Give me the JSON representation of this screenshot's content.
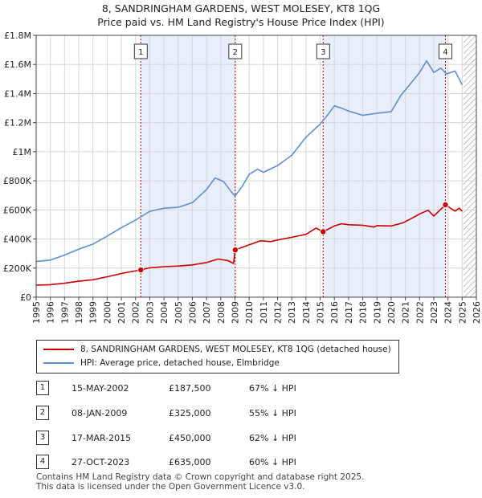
{
  "chart_data": {
    "type": "line",
    "title_line1": "8, SANDRINGHAM GARDENS, WEST MOLESEY, KT8 1QG",
    "title_line2": "Price paid vs. HM Land Registry's House Price Index (HPI)",
    "xlim": [
      1995,
      2026
    ],
    "ylim": [
      0,
      1800000
    ],
    "y_ticks": [
      {
        "value": 0,
        "label": "£0"
      },
      {
        "value": 200000,
        "label": "£200K"
      },
      {
        "value": 400000,
        "label": "£400K"
      },
      {
        "value": 600000,
        "label": "£600K"
      },
      {
        "value": 800000,
        "label": "£800K"
      },
      {
        "value": 1000000,
        "label": "£1M"
      },
      {
        "value": 1200000,
        "label": "£1.2M"
      },
      {
        "value": 1400000,
        "label": "£1.4M"
      },
      {
        "value": 1600000,
        "label": "£1.6M"
      },
      {
        "value": 1800000,
        "label": "£1.8M"
      }
    ],
    "x_ticks": [
      "1995",
      "1996",
      "1997",
      "1998",
      "1999",
      "2000",
      "2001",
      "2002",
      "2003",
      "2004",
      "2005",
      "2006",
      "2007",
      "2008",
      "2009",
      "2010",
      "2011",
      "2012",
      "2013",
      "2014",
      "2015",
      "2016",
      "2017",
      "2018",
      "2019",
      "2020",
      "2021",
      "2022",
      "2023",
      "2024",
      "2025",
      "2026"
    ],
    "shaded_periods": [
      [
        2002.37,
        2009.02
      ],
      [
        2015.21,
        2023.82
      ]
    ],
    "hatched_from": 2025.08,
    "series": [
      {
        "name": "8, SANDRINGHAM GARDENS, WEST MOLESEY, KT8 1QG (detached house)",
        "color": "#cc0000",
        "points": [
          [
            1995,
            82000
          ],
          [
            1996,
            86000
          ],
          [
            1997,
            96000
          ],
          [
            1998,
            110000
          ],
          [
            1999,
            120000
          ],
          [
            2000,
            140000
          ],
          [
            2001,
            163000
          ],
          [
            2002.37,
            187500
          ],
          [
            2003,
            202000
          ],
          [
            2004,
            210000
          ],
          [
            2005,
            214000
          ],
          [
            2006,
            222000
          ],
          [
            2007,
            238000
          ],
          [
            2007.8,
            262000
          ],
          [
            2008.5,
            252000
          ],
          [
            2008.9,
            232000
          ],
          [
            2009.02,
            325000
          ],
          [
            2010,
            360000
          ],
          [
            2010.8,
            388000
          ],
          [
            2011.5,
            382000
          ],
          [
            2012,
            393000
          ],
          [
            2013,
            412000
          ],
          [
            2014,
            432000
          ],
          [
            2014.7,
            475000
          ],
          [
            2015.21,
            450000
          ],
          [
            2016,
            490000
          ],
          [
            2016.5,
            505000
          ],
          [
            2017,
            498000
          ],
          [
            2018,
            495000
          ],
          [
            2018.8,
            482000
          ],
          [
            2019,
            492000
          ],
          [
            2020,
            490000
          ],
          [
            2020.8,
            510000
          ],
          [
            2021.5,
            545000
          ],
          [
            2022,
            572000
          ],
          [
            2022.6,
            598000
          ],
          [
            2023,
            558000
          ],
          [
            2023.82,
            635000
          ],
          [
            2024.2,
            610000
          ],
          [
            2024.5,
            592000
          ],
          [
            2024.8,
            612000
          ],
          [
            2025,
            590000
          ]
        ]
      },
      {
        "name": "HPI: Average price, detached house, Elmbridge",
        "color": "#5b8fd6",
        "points": [
          [
            1995,
            245000
          ],
          [
            1996,
            255000
          ],
          [
            1997,
            290000
          ],
          [
            1998,
            330000
          ],
          [
            1999,
            365000
          ],
          [
            2000,
            420000
          ],
          [
            2001,
            478000
          ],
          [
            2002,
            530000
          ],
          [
            2003,
            590000
          ],
          [
            2004,
            612000
          ],
          [
            2005,
            618000
          ],
          [
            2006,
            650000
          ],
          [
            2007,
            740000
          ],
          [
            2007.6,
            820000
          ],
          [
            2008.2,
            795000
          ],
          [
            2008.7,
            730000
          ],
          [
            2009,
            695000
          ],
          [
            2009.5,
            760000
          ],
          [
            2010,
            845000
          ],
          [
            2010.6,
            880000
          ],
          [
            2011,
            858000
          ],
          [
            2012,
            905000
          ],
          [
            2013,
            975000
          ],
          [
            2014,
            1100000
          ],
          [
            2015,
            1190000
          ],
          [
            2015.5,
            1250000
          ],
          [
            2016,
            1315000
          ],
          [
            2016.5,
            1300000
          ],
          [
            2017,
            1280000
          ],
          [
            2018,
            1250000
          ],
          [
            2019,
            1265000
          ],
          [
            2020,
            1275000
          ],
          [
            2020.7,
            1390000
          ],
          [
            2021.3,
            1460000
          ],
          [
            2022,
            1545000
          ],
          [
            2022.5,
            1625000
          ],
          [
            2023,
            1545000
          ],
          [
            2023.5,
            1575000
          ],
          [
            2023.9,
            1535000
          ],
          [
            2024.5,
            1555000
          ],
          [
            2025,
            1460000
          ]
        ]
      }
    ],
    "sales": [
      {
        "num": "1",
        "year": 2002.37,
        "price": 187500,
        "date": "15-MAY-2002",
        "price_label": "£187,500",
        "hpi_label": "67% ↓ HPI"
      },
      {
        "num": "2",
        "year": 2009.02,
        "price": 325000,
        "date": "08-JAN-2009",
        "price_label": "£325,000",
        "hpi_label": "55% ↓ HPI"
      },
      {
        "num": "3",
        "year": 2015.21,
        "price": 450000,
        "date": "17-MAR-2015",
        "price_label": "£450,000",
        "hpi_label": "62% ↓ HPI"
      },
      {
        "num": "4",
        "year": 2023.82,
        "price": 635000,
        "date": "27-OCT-2023",
        "price_label": "£635,000",
        "hpi_label": "60% ↓ HPI"
      }
    ]
  },
  "legend": {
    "property_label": "8, SANDRINGHAM GARDENS, WEST MOLESEY, KT8 1QG (detached house)",
    "hpi_label": "HPI: Average price, detached house, Elmbridge"
  },
  "footer": {
    "line1": "Contains HM Land Registry data © Crown copyright and database right 2025.",
    "line2": "This data is licensed under the Open Government Licence v3.0."
  }
}
